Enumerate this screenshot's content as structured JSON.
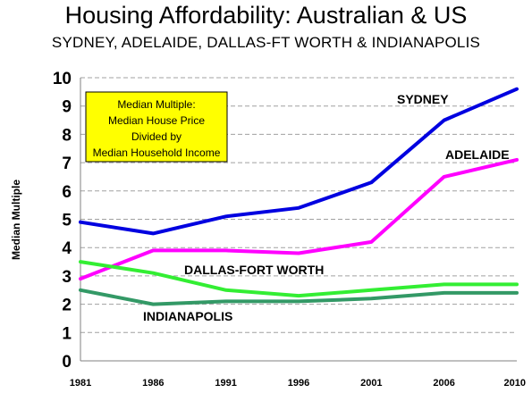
{
  "chart_data": {
    "type": "line",
    "title": "Housing Affordability: Australian & US",
    "subtitle": "SYDNEY, ADELAIDE, DALLAS-FT WORTH & INDIANAPOLIS",
    "ylabel": "Median Multiple",
    "xlabel": "",
    "categories": [
      "1981",
      "1986",
      "1991",
      "1996",
      "2001",
      "2006",
      "2010"
    ],
    "ylim": [
      0,
      10
    ],
    "yticks": [
      "0",
      "1",
      "2",
      "3",
      "4",
      "5",
      "6",
      "7",
      "8",
      "9",
      "10"
    ],
    "grid": true,
    "note": [
      "Median Multiple:",
      "Median House Price",
      "Divided by",
      "Median Household Income"
    ],
    "series": [
      {
        "name": "SYDNEY",
        "color": "#0000e0",
        "values": [
          4.9,
          4.5,
          5.1,
          5.4,
          6.3,
          8.5,
          9.6
        ]
      },
      {
        "name": "ADELAIDE",
        "color": "#ff00ff",
        "values": [
          2.9,
          3.9,
          3.9,
          3.8,
          4.2,
          6.5,
          7.1
        ]
      },
      {
        "name": "DALLAS-FORT WORTH",
        "color": "#33ee33",
        "values": [
          3.5,
          3.1,
          2.5,
          2.3,
          2.5,
          2.7,
          2.7
        ]
      },
      {
        "name": "INDIANAPOLIS",
        "color": "#339966",
        "values": [
          2.5,
          2.0,
          2.1,
          2.1,
          2.2,
          2.4,
          2.4
        ]
      }
    ]
  }
}
